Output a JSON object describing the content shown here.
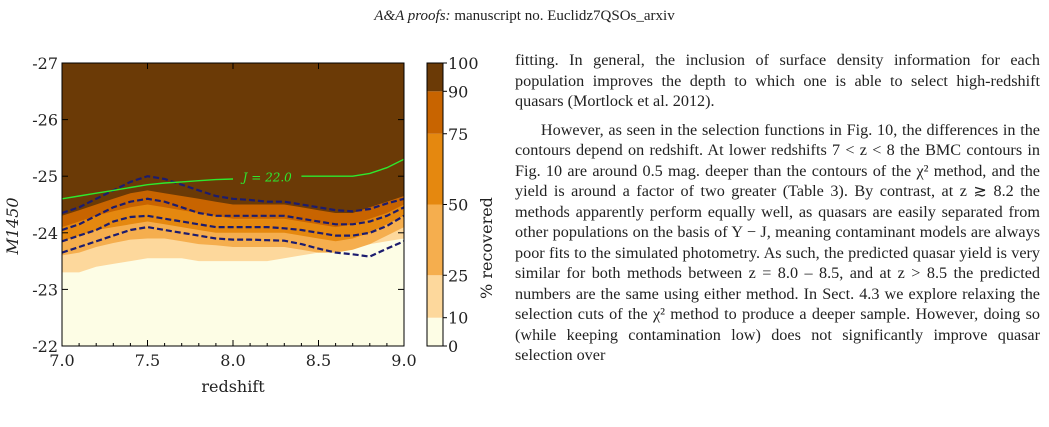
{
  "header": {
    "journal": "A&A proofs:",
    "manuscript": "manuscript no. Euclidz7QSOs_arxiv"
  },
  "chart_data": {
    "type": "heatmap",
    "xlabel": "redshift",
    "ylabel": "M1450",
    "colorbar_label": "% recovered",
    "xlim": [
      7.0,
      9.0
    ],
    "ylim": [
      -22,
      -27
    ],
    "x_ticks": [
      "7.0",
      "7.5",
      "8.0",
      "8.5",
      "9.0"
    ],
    "y_ticks": [
      "-27",
      "-26",
      "-25",
      "-24",
      "-23",
      "-22"
    ],
    "colorbar_ticks": [
      "100",
      "90",
      "75",
      "50",
      "25",
      "10",
      "0"
    ],
    "levels": [
      0,
      10,
      25,
      50,
      75,
      90,
      100
    ],
    "level_colors": [
      "#fdfde5",
      "#fdd89c",
      "#f5ae4e",
      "#e5880f",
      "#c86400",
      "#6b3a06"
    ],
    "redshift": [
      7.0,
      7.1,
      7.2,
      7.3,
      7.4,
      7.5,
      7.6,
      7.7,
      7.8,
      7.9,
      8.0,
      8.1,
      8.2,
      8.3,
      8.4,
      8.5,
      8.6,
      8.7,
      8.8,
      8.9,
      9.0
    ],
    "filled_boundaries": [
      {
        "level": 10,
        "M1450": [
          -23.3,
          -23.3,
          -23.4,
          -23.45,
          -23.5,
          -23.55,
          -23.55,
          -23.55,
          -23.5,
          -23.5,
          -23.5,
          -23.5,
          -23.5,
          -23.55,
          -23.6,
          -23.65,
          -23.7,
          -23.75,
          -23.8,
          -23.85,
          -23.9
        ]
      },
      {
        "level": 25,
        "M1450": [
          -23.6,
          -23.65,
          -23.75,
          -23.82,
          -23.88,
          -23.9,
          -23.9,
          -23.85,
          -23.8,
          -23.78,
          -23.75,
          -23.75,
          -23.75,
          -23.75,
          -23.7,
          -23.65,
          -23.65,
          -23.7,
          -23.8,
          -23.95,
          -24.1
        ]
      },
      {
        "level": 50,
        "M1450": [
          -23.85,
          -23.95,
          -24.05,
          -24.1,
          -24.15,
          -24.2,
          -24.15,
          -24.1,
          -24.05,
          -24.0,
          -24.0,
          -24.0,
          -24.0,
          -24.0,
          -23.95,
          -23.9,
          -23.85,
          -23.9,
          -24.0,
          -24.15,
          -24.3
        ]
      },
      {
        "level": 75,
        "M1450": [
          -24.1,
          -24.2,
          -24.3,
          -24.38,
          -24.45,
          -24.5,
          -24.45,
          -24.4,
          -24.35,
          -24.3,
          -24.25,
          -24.25,
          -24.25,
          -24.25,
          -24.2,
          -24.15,
          -24.1,
          -24.15,
          -24.25,
          -24.35,
          -24.5
        ]
      },
      {
        "level": 90,
        "M1450": [
          -24.3,
          -24.4,
          -24.5,
          -24.6,
          -24.7,
          -24.75,
          -24.7,
          -24.65,
          -24.6,
          -24.55,
          -24.5,
          -24.5,
          -24.5,
          -24.5,
          -24.45,
          -24.4,
          -24.35,
          -24.35,
          -24.45,
          -24.55,
          -24.65
        ]
      }
    ],
    "dashed_contours_M1450": [
      [
        -24.35,
        -24.45,
        -24.6,
        -24.75,
        -24.9,
        -25.0,
        -24.95,
        -24.85,
        -24.75,
        -24.65,
        -24.6,
        -24.58,
        -24.55,
        -24.55,
        -24.5,
        -24.45,
        -24.4,
        -24.38,
        -24.42,
        -24.52,
        -24.6
      ],
      [
        -24.05,
        -24.15,
        -24.3,
        -24.45,
        -24.55,
        -24.6,
        -24.55,
        -24.45,
        -24.35,
        -24.3,
        -24.3,
        -24.3,
        -24.3,
        -24.3,
        -24.25,
        -24.2,
        -24.15,
        -24.15,
        -24.2,
        -24.3,
        -24.45
      ],
      [
        -23.85,
        -23.95,
        -24.05,
        -24.2,
        -24.28,
        -24.3,
        -24.25,
        -24.2,
        -24.15,
        -24.1,
        -24.1,
        -24.1,
        -24.1,
        -24.08,
        -24.05,
        -24.0,
        -23.95,
        -23.95,
        -24.0,
        -24.12,
        -24.3
      ],
      [
        -23.65,
        -23.75,
        -23.85,
        -23.95,
        -24.05,
        -24.1,
        -24.05,
        -24.0,
        -23.95,
        -23.9,
        -23.88,
        -23.88,
        -23.87,
        -23.86,
        -23.8,
        -23.72,
        -23.65,
        -23.62,
        -23.58,
        -23.72,
        -23.85
      ]
    ],
    "J_line": {
      "label": "J = 22.0",
      "M1450": [
        -24.6,
        -24.65,
        -24.7,
        -24.75,
        -24.8,
        -24.85,
        -24.88,
        -24.9,
        -24.92,
        -24.94,
        -24.95,
        -24.97,
        -24.98,
        -25.0,
        -25.0,
        -25.0,
        -25.0,
        -25.0,
        -25.05,
        -25.15,
        -25.3
      ]
    }
  },
  "body": {
    "para1": "fitting. In general, the inclusion of surface density information for each population improves the depth to which one is able to select high-redshift quasars (Mortlock et al. 2012).",
    "para2": "However, as seen in the selection functions in Fig. 10, the differences in the contours depend on redshift. At lower redshifts 7 < z < 8 the BMC contours in Fig. 10 are around 0.5 mag. deeper than the contours of the χ² method, and the yield is around a factor of two greater (Table 3). By contrast, at z ≳ 8.2 the methods apparently perform equally well, as quasars are easily separated from other populations on the basis of Y − J, meaning contaminant models are always poor fits to the simulated photometry. As such, the predicted quasar yield is very similar for both methods between z = 8.0 – 8.5, and at z > 8.5 the predicted numbers are the same using either method. In Sect. 4.3 we explore relaxing the selection cuts of the χ² method to produce a deeper sample. However, doing so (while keeping contamination low) does not significantly improve quasar selection over"
  }
}
